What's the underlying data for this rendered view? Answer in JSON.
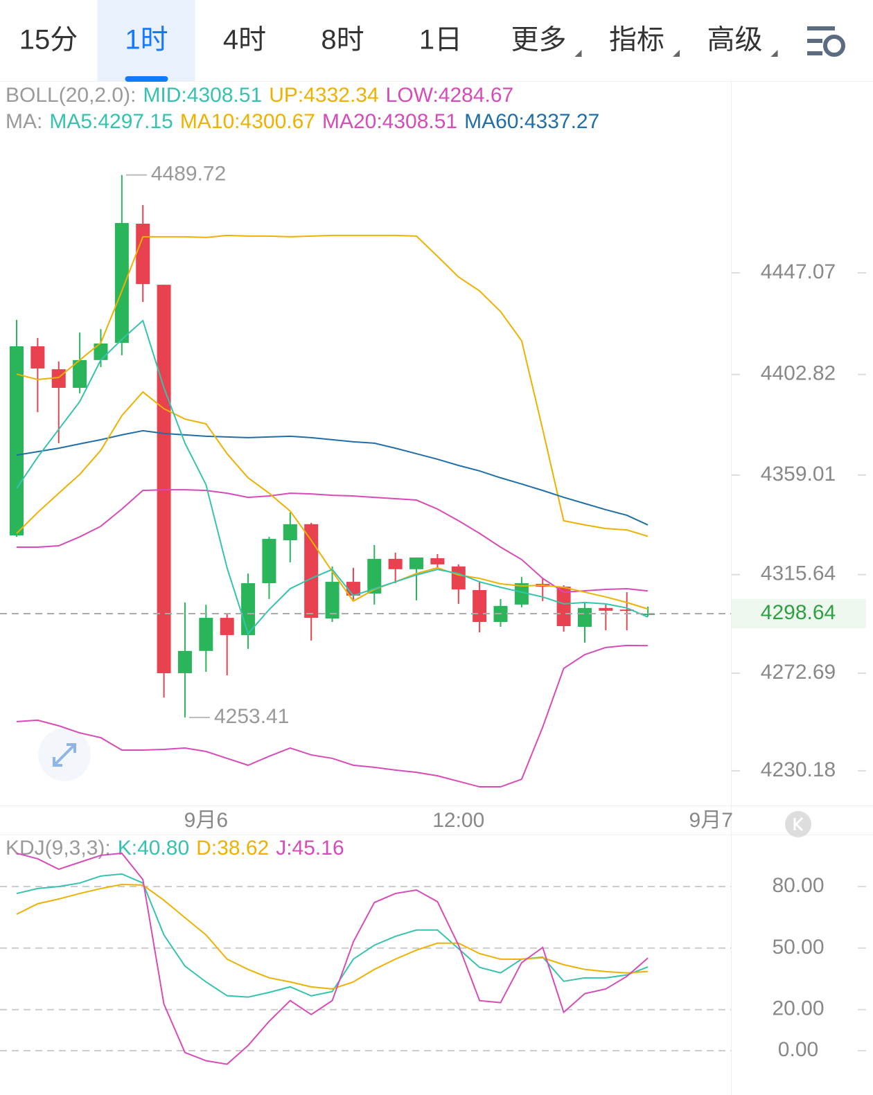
{
  "tabs": [
    {
      "label": "15分"
    },
    {
      "label": "1时",
      "active": true
    },
    {
      "label": "4时"
    },
    {
      "label": "8时"
    },
    {
      "label": "1日"
    },
    {
      "label": "更多",
      "menu": true
    },
    {
      "label": "指标",
      "menu": true
    },
    {
      "label": "高级",
      "menu": true
    }
  ],
  "legends": {
    "boll": {
      "title": "BOLL(20,2.0):",
      "items": [
        {
          "text": "MID:4308.51",
          "color": "#35c2ae"
        },
        {
          "text": "UP:4332.34",
          "color": "#efb100"
        },
        {
          "text": "LOW:4284.67",
          "color": "#d64bb8"
        }
      ]
    },
    "ma": {
      "title": "MA:",
      "items": [
        {
          "text": "MA5:4297.15",
          "color": "#35c2ae"
        },
        {
          "text": "MA10:4300.67",
          "color": "#efb100"
        },
        {
          "text": "MA20:4308.51",
          "color": "#d64bb8"
        },
        {
          "text": "MA60:4337.27",
          "color": "#1f6ea8"
        }
      ]
    },
    "kdj": {
      "title": "KDJ(9,3,3):",
      "items": [
        {
          "text": "K:40.80",
          "color": "#35c2ae"
        },
        {
          "text": "D:38.62",
          "color": "#efb100"
        },
        {
          "text": "J:45.16",
          "color": "#d64bb8"
        }
      ]
    }
  },
  "chart_data": [
    {
      "type": "candlestick",
      "ylim": [
        4215.97,
        4505.6
      ],
      "yticks": [
        4447.07,
        4402.82,
        4359.01,
        4315.64,
        4272.69,
        4230.18
      ],
      "xticks": [
        {
          "value": 9,
          "label": "9月6"
        },
        {
          "value": 21,
          "label": "12:00"
        },
        {
          "value": 33,
          "label": "9月7"
        }
      ],
      "up_color": "#2bb55a",
      "down_color": "#e8414f",
      "candles": {
        "open": [
          4332.7,
          4415.1,
          4405.1,
          4397.0,
          4409.1,
          4416.6,
          4468.5,
          4441.9,
          4272.7,
          4282.4,
          4296.8,
          4289.3,
          4311.9,
          4330.6,
          4337.6,
          4296.5,
          4312.5,
          4307.4,
          4322.5,
          4318.0,
          4322.8,
          4319.2,
          4308.9,
          4295.0,
          4302.6,
          4311.6,
          4310.4,
          4292.9,
          4301.1,
          4300.4,
          4298.2
        ],
        "high": [
          4426.6,
          4418.7,
          4408.5,
          4421.1,
          4422.6,
          4489.72,
          4476.6,
          4441.9,
          4303.5,
          4302.5,
          4298.6,
          4316.1,
          4332.1,
          4342.7,
          4338.2,
          4319.2,
          4318.6,
          4328.5,
          4325.2,
          4323.1,
          4324.6,
          4320.1,
          4312.5,
          4305.0,
          4314.6,
          4313.9,
          4311.0,
          4303.5,
          4302.6,
          4308.0,
          4301.7
        ],
        "low": [
          4332.1,
          4386.4,
          4372.9,
          4394.6,
          4406.0,
          4411.2,
          4434.4,
          4262.1,
          4253.41,
          4273.3,
          4271.8,
          4283.3,
          4305.0,
          4321.0,
          4286.9,
          4295.0,
          4304.7,
          4302.6,
          4311.9,
          4304.4,
          4318.6,
          4302.9,
          4290.5,
          4292.9,
          4301.4,
          4304.1,
          4290.8,
          4286.0,
          4291.4,
          4291.4,
          4297.4
        ],
        "close": [
          4415.1,
          4405.4,
          4397.0,
          4409.1,
          4416.3,
          4468.8,
          4442.2,
          4272.7,
          4282.4,
          4296.8,
          4289.3,
          4311.9,
          4331.2,
          4337.6,
          4296.8,
          4312.5,
          4306.5,
          4322.5,
          4318.0,
          4323.1,
          4320.1,
          4309.2,
          4295.0,
          4302.0,
          4311.9,
          4310.4,
          4293.2,
          4301.1,
          4299.9,
          4299.9,
          4298.64
        ]
      },
      "series": [
        {
          "color": "#efb100",
          "values": [
            4403.0,
            4400.6,
            4401.5,
            4409.1,
            4416.6,
            4439.2,
            4462.8,
            4462.8,
            4462.8,
            4462.5,
            4463.4,
            4463.1,
            4463.1,
            4462.8,
            4463.1,
            4463.4,
            4463.4,
            4463.4,
            4463.4,
            4463.1,
            4454.3,
            4445.3,
            4439.2,
            4430.2,
            4417.5,
            4378.9,
            4339.1,
            4337.3,
            4335.7,
            4335.1,
            4332.34
          ]
        },
        {
          "color": "#d64bb8",
          "values": [
            4251.6,
            4252.2,
            4249.8,
            4246.7,
            4244.6,
            4239.2,
            4239.2,
            4239.5,
            4240.1,
            4238.6,
            4235.6,
            4232.6,
            4236.5,
            4240.1,
            4237.1,
            4235.6,
            4232.6,
            4231.7,
            4230.5,
            4229.5,
            4228.0,
            4225.6,
            4223.2,
            4223.2,
            4226.5,
            4249.2,
            4274.8,
            4280.8,
            4283.9,
            4284.8,
            4284.67
          ]
        },
        {
          "color": "#d64bb8",
          "values": [
            4327.6,
            4327.6,
            4328.2,
            4332.1,
            4336.7,
            4344.2,
            4352.3,
            4352.6,
            4352.6,
            4352.3,
            4351.1,
            4349.3,
            4349.9,
            4351.1,
            4350.8,
            4350.2,
            4349.9,
            4349.3,
            4348.7,
            4348.1,
            4344.2,
            4339.1,
            4333.6,
            4327.6,
            4322.2,
            4314.0,
            4308.0,
            4308.6,
            4309.2,
            4309.5,
            4308.51
          ]
        },
        {
          "color": "#1f6ea8",
          "values": [
            4367.7,
            4369.2,
            4370.7,
            4372.6,
            4374.4,
            4376.5,
            4378.3,
            4377.1,
            4376.5,
            4375.9,
            4375.6,
            4375.3,
            4375.6,
            4375.9,
            4375.3,
            4374.4,
            4373.5,
            4372.9,
            4370.7,
            4368.3,
            4365.9,
            4363.2,
            4360.8,
            4357.8,
            4355.1,
            4352.3,
            4349.3,
            4346.6,
            4343.9,
            4341.5,
            4337.27
          ]
        },
        {
          "color": "#efb100",
          "values": [
            4333.6,
            4342.7,
            4351.1,
            4359.3,
            4369.8,
            4384.9,
            4395.2,
            4387.9,
            4383.4,
            4381.3,
            4368.3,
            4357.8,
            4351.1,
            4343.3,
            4330.6,
            4317.0,
            4304.1,
            4309.2,
            4312.5,
            4316.1,
            4318.6,
            4315.5,
            4314.0,
            4311.6,
            4310.7,
            4311.0,
            4310.1,
            4308.0,
            4305.9,
            4303.5,
            4300.67
          ]
        },
        {
          "color": "#35c2ae",
          "values": [
            4353.2,
            4366.8,
            4378.9,
            4391.0,
            4409.1,
            4418.1,
            4426.3,
            4397.0,
            4372.9,
            4354.8,
            4318.6,
            4289.9,
            4300.4,
            4309.5,
            4314.0,
            4317.9,
            4306.5,
            4309.5,
            4312.5,
            4315.5,
            4317.9,
            4316.1,
            4312.5,
            4310.1,
            4308.0,
            4305.9,
            4302.9,
            4303.5,
            4302.9,
            4301.1,
            4297.15
          ]
        }
      ],
      "high_label": 4489.72,
      "low_label": 4253.41,
      "last_price": 4298.64
    },
    {
      "type": "line",
      "ylim": [
        -16.2,
        105.3
      ],
      "yticks": [
        {
          "value": 80,
          "label": "80.00"
        },
        {
          "value": 50,
          "label": "50.00"
        },
        {
          "value": 20,
          "label": "20.00"
        },
        {
          "value": 0,
          "label": "0.00"
        }
      ],
      "series": [
        {
          "color": "#35c2ae",
          "values": [
            76.6,
            79.0,
            80.0,
            81.7,
            85.1,
            86.1,
            81.7,
            56.4,
            41.2,
            33.5,
            26.8,
            26.1,
            28.4,
            31.1,
            26.7,
            28.8,
            44.6,
            51.4,
            55.7,
            58.8,
            58.8,
            49.7,
            40.6,
            37.9,
            44.6,
            45.6,
            33.8,
            35.5,
            35.5,
            36.9,
            40.8
          ]
        },
        {
          "color": "#efb100",
          "values": [
            66.5,
            71.6,
            73.9,
            76.6,
            79.0,
            81.0,
            80.7,
            73.3,
            64.8,
            56.4,
            44.6,
            39.6,
            35.5,
            33.5,
            31.1,
            30.1,
            33.5,
            39.6,
            44.6,
            49.0,
            52.4,
            52.4,
            47.3,
            44.6,
            44.6,
            45.3,
            41.9,
            39.6,
            38.5,
            37.9,
            38.62
          ]
        },
        {
          "color": "#d64bb8",
          "values": [
            96.2,
            93.5,
            88.4,
            91.8,
            95.2,
            96.2,
            83.4,
            22.7,
            -0.9,
            -4.9,
            -6.6,
            2.5,
            14.3,
            24.4,
            17.6,
            24.4,
            53.0,
            72.2,
            76.6,
            78.3,
            72.6,
            51.4,
            24.4,
            23.4,
            42.9,
            50.3,
            18.7,
            27.8,
            30.1,
            36.2,
            45.16
          ]
        }
      ]
    }
  ]
}
